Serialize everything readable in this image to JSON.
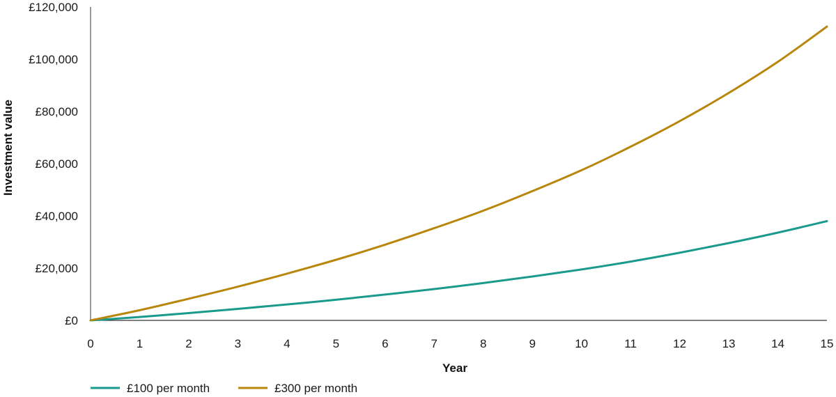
{
  "chart_data": {
    "type": "line",
    "title": "",
    "xlabel": "Year",
    "ylabel": "Investment value",
    "x": [
      0,
      1,
      2,
      3,
      4,
      5,
      6,
      7,
      8,
      9,
      10,
      11,
      12,
      13,
      14,
      15
    ],
    "xlim": [
      0,
      15
    ],
    "ylim": [
      0,
      120000
    ],
    "x_ticks": [
      "0",
      "1",
      "2",
      "3",
      "4",
      "5",
      "6",
      "7",
      "8",
      "9",
      "10",
      "11",
      "12",
      "13",
      "14",
      "15"
    ],
    "y_ticks": [
      {
        "value": 0,
        "label": "£0"
      },
      {
        "value": 20000,
        "label": "£20,000"
      },
      {
        "value": 40000,
        "label": "£40,000"
      },
      {
        "value": 60000,
        "label": "£60,000"
      },
      {
        "value": 80000,
        "label": "£80,000"
      },
      {
        "value": 100000,
        "label": "£100,000"
      },
      {
        "value": 120000,
        "label": "£120,000"
      }
    ],
    "grid": false,
    "legend_position": "bottom-left",
    "series": [
      {
        "name": "£100 per month",
        "color": "#1a9a8c",
        "values": [
          0,
          1300,
          2800,
          4400,
          6100,
          7900,
          9900,
          12000,
          14300,
          16800,
          19500,
          22500,
          25900,
          29600,
          33600,
          38000
        ]
      },
      {
        "name": "£300 per month",
        "color": "#b8860b",
        "values": [
          0,
          3900,
          8300,
          12900,
          17900,
          23200,
          29000,
          35300,
          42000,
          49500,
          57500,
          66500,
          76300,
          87100,
          99000,
          112500
        ]
      }
    ]
  }
}
